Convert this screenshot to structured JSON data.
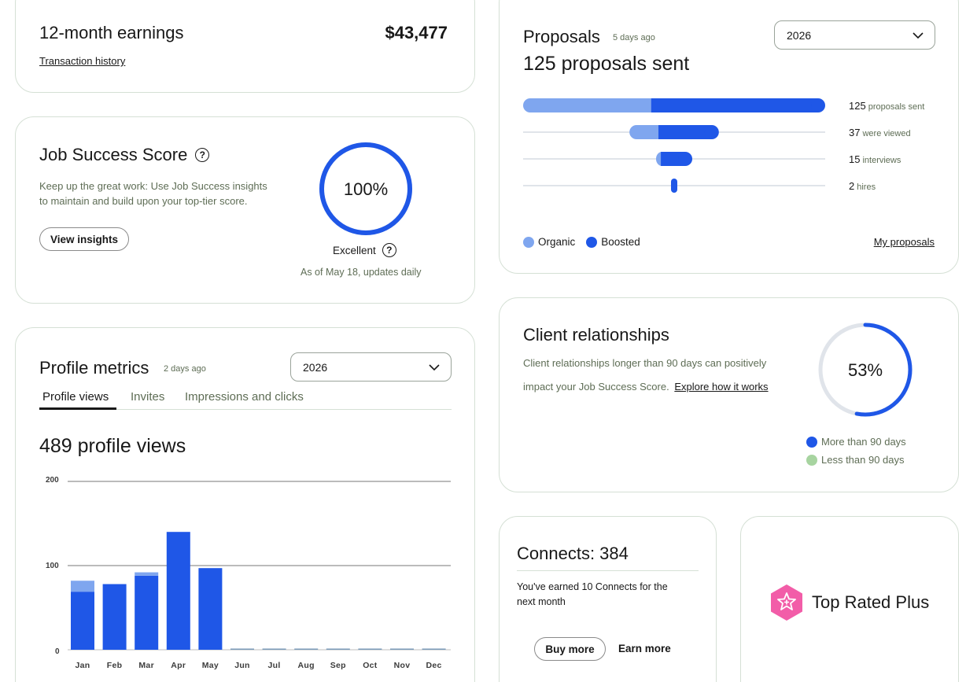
{
  "earnings": {
    "title": "12-month earnings",
    "amount": "$43,477",
    "history_link": "Transaction history"
  },
  "jss": {
    "title": "Job Success Score",
    "description_line1": "Keep up the great work: Use Job Success insights",
    "description_line2": "to maintain and build upon your top-tier score.",
    "button": "View insights",
    "score": "100%",
    "score_fraction": 1.0,
    "rating": "Excellent",
    "updated": "As of May 18, updates daily",
    "ring_color": "#1f57e7"
  },
  "proposals": {
    "title": "Proposals",
    "updated": "5 days ago",
    "year": "2026",
    "headline": "125 proposals sent",
    "funnel": [
      {
        "num": "125",
        "label": "proposals sent",
        "organic": 53,
        "boosted": 72
      },
      {
        "num": "37",
        "label": "were viewed",
        "organic": 12,
        "boosted": 25
      },
      {
        "num": "15",
        "label": "interviews",
        "organic": 2,
        "boosted": 13
      },
      {
        "num": "2",
        "label": "hires",
        "organic": 0,
        "boosted": 2
      }
    ],
    "legend_organic": "Organic",
    "legend_boosted": "Boosted",
    "link": "My proposals",
    "color_organic": "#7fa6ef",
    "color_boosted": "#1f57e7"
  },
  "clients": {
    "title": "Client relationships",
    "description_line1": "Client relationships longer than 90 days can positively",
    "description_line2": "impact your Job Success Score.",
    "link": "Explore how it works",
    "percent": "53%",
    "fraction": 0.53,
    "legend_more": "More than 90 days",
    "legend_less": "Less than 90 days",
    "color_more": "#1f57e7",
    "color_less": "#a7d4a0",
    "color_track": "#e0e4ea"
  },
  "profile": {
    "title": "Profile metrics",
    "updated": "2 days ago",
    "year": "2026",
    "tabs": [
      "Profile views",
      "Invites",
      "Impressions and clicks"
    ],
    "headline": "489 profile views"
  },
  "chart_data": {
    "type": "bar",
    "categories": [
      "Jan",
      "Feb",
      "Mar",
      "Apr",
      "May",
      "Jun",
      "Jul",
      "Aug",
      "Sep",
      "Oct",
      "Nov",
      "Dec"
    ],
    "series": [
      {
        "values": [
          69,
          78,
          88,
          140,
          97,
          0,
          0,
          0,
          0,
          0,
          0,
          0
        ],
        "color": "#1f57e7"
      },
      {
        "values": [
          13,
          0,
          4,
          0,
          0,
          0,
          0,
          0,
          0,
          0,
          0,
          0
        ],
        "color": "#7fa6ef"
      }
    ],
    "stacked": true,
    "ylim": [
      0,
      200
    ],
    "yticks": [
      "200",
      "100",
      "0"
    ],
    "grid": true
  },
  "connects": {
    "title": "Connects: 384",
    "description_line1": "You've earned 10 Connects for the",
    "description_line2": "next month",
    "buy": "Buy more",
    "earn": "Earn more"
  },
  "badge": {
    "label": "Top Rated Plus",
    "color": "#f25da8"
  }
}
